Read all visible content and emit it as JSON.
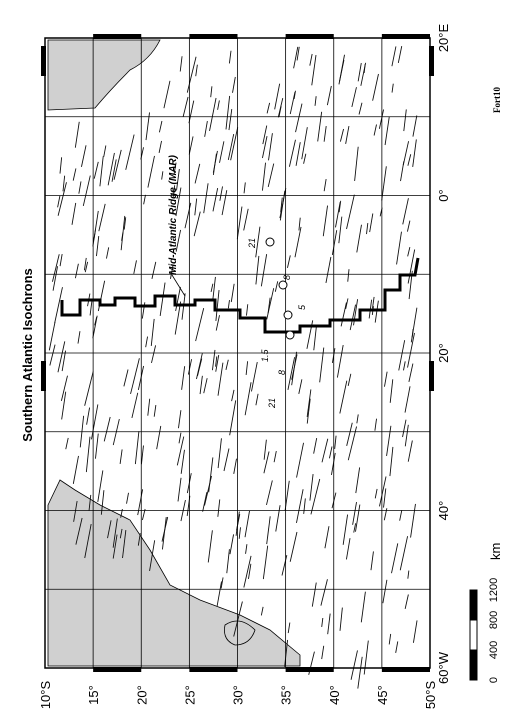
{
  "map": {
    "title": "Southern Atlantic Isochrons",
    "ridge_label": "Mid-Atlantic Ridge (MAR)",
    "corner_label": "Fort10",
    "lat_labels": [
      "10°S",
      "15°",
      "20°",
      "25°",
      "30°",
      "35°",
      "40°",
      "45°",
      "50°S"
    ],
    "lon_labels": [
      "20°E",
      "0°",
      "20°",
      "40°",
      "60°W"
    ],
    "isochron_labels": [
      "21",
      "8",
      "5",
      "1.5",
      "8",
      "21"
    ],
    "scale_bar": {
      "labels": [
        "0",
        "400",
        "800",
        "1200"
      ],
      "unit": "km"
    }
  }
}
